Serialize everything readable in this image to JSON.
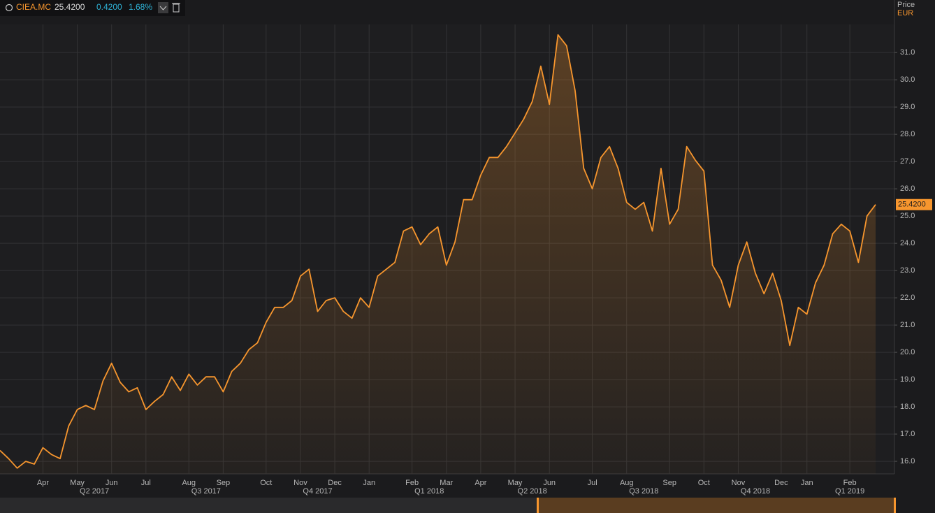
{
  "header": {
    "symbol": "CIEA.MC",
    "price": "25.4200",
    "change": "0.4200",
    "change_pct": "1.68%"
  },
  "chart_data": {
    "type": "area",
    "axis_title": "Price",
    "currency": "EUR",
    "color": "#f7962e",
    "grid": true,
    "categories": [
      null,
      null,
      null,
      null,
      null,
      "Apr",
      null,
      null,
      null,
      "May",
      null,
      null,
      null,
      "Jun",
      null,
      null,
      null,
      "Jul",
      null,
      null,
      null,
      null,
      "Aug",
      null,
      null,
      null,
      "Sep",
      null,
      null,
      null,
      null,
      "Oct",
      null,
      null,
      null,
      "Nov",
      null,
      null,
      null,
      "Dec",
      null,
      null,
      null,
      "Jan",
      null,
      null,
      null,
      null,
      "Feb",
      null,
      null,
      null,
      "Mar",
      null,
      null,
      null,
      "Apr",
      null,
      null,
      null,
      "May",
      null,
      null,
      null,
      "Jun",
      null,
      null,
      null,
      null,
      "Jul",
      null,
      null,
      null,
      "Aug",
      null,
      null,
      null,
      null,
      "Sep",
      null,
      null,
      null,
      "Oct",
      null,
      null,
      null,
      "Nov",
      null,
      null,
      null,
      null,
      "Dec",
      null,
      null,
      "Jan",
      null,
      null,
      null,
      null,
      "Feb",
      null,
      null,
      null
    ],
    "quarters": [
      null,
      null,
      null,
      null,
      null,
      null,
      null,
      null,
      null,
      null,
      null,
      "Q2 2017",
      null,
      null,
      null,
      null,
      null,
      null,
      null,
      null,
      null,
      null,
      null,
      null,
      "Q3 2017",
      null,
      null,
      null,
      null,
      null,
      null,
      null,
      null,
      null,
      null,
      null,
      null,
      "Q4 2017",
      null,
      null,
      null,
      null,
      null,
      null,
      null,
      null,
      null,
      null,
      null,
      null,
      "Q1 2018",
      null,
      null,
      null,
      null,
      null,
      null,
      null,
      null,
      null,
      null,
      null,
      "Q2 2018",
      null,
      null,
      null,
      null,
      null,
      null,
      null,
      null,
      null,
      null,
      null,
      null,
      "Q3 2018",
      null,
      null,
      null,
      null,
      null,
      null,
      null,
      null,
      null,
      null,
      null,
      null,
      "Q4 2018",
      null,
      null,
      null,
      null,
      null,
      null,
      null,
      null,
      null,
      null,
      "Q1 2019",
      null,
      null,
      null
    ],
    "values": [
      16.4,
      16.1,
      15.75,
      16.0,
      15.9,
      16.5,
      16.25,
      16.1,
      17.3,
      17.9,
      18.05,
      17.9,
      18.95,
      19.6,
      18.9,
      18.55,
      18.7,
      17.9,
      18.2,
      18.45,
      19.1,
      18.6,
      19.2,
      18.8,
      19.1,
      19.1,
      18.55,
      19.3,
      19.6,
      20.1,
      20.35,
      21.1,
      21.65,
      21.65,
      21.9,
      22.8,
      23.05,
      21.5,
      21.9,
      22.0,
      21.5,
      21.25,
      22.0,
      21.65,
      22.8,
      23.05,
      23.3,
      24.45,
      24.6,
      23.95,
      24.35,
      24.6,
      23.2,
      24.05,
      25.6,
      25.6,
      26.5,
      27.15,
      27.15,
      27.55,
      28.05,
      28.55,
      29.2,
      30.5,
      29.1,
      31.65,
      31.25,
      29.6,
      26.75,
      26.0,
      27.15,
      27.55,
      26.75,
      25.5,
      25.25,
      25.5,
      24.45,
      26.75,
      24.7,
      25.25,
      27.55,
      27.05,
      26.65,
      23.2,
      22.65,
      21.65,
      23.2,
      24.05,
      22.9,
      22.15,
      22.9,
      21.9,
      20.25,
      21.65,
      21.4,
      22.55,
      23.2,
      24.35,
      24.7,
      24.45,
      23.3,
      25.0,
      25.42
    ],
    "ylim": [
      15.54,
      32.03
    ],
    "yticks": [
      {
        "value": 16,
        "label": "16.0"
      },
      {
        "value": 17,
        "label": "17.0"
      },
      {
        "value": 18,
        "label": "18.0"
      },
      {
        "value": 19,
        "label": "19.0"
      },
      {
        "value": 20,
        "label": "20.0"
      },
      {
        "value": 21,
        "label": "21.0"
      },
      {
        "value": 22,
        "label": "22.0"
      },
      {
        "value": 23,
        "label": "23.0"
      },
      {
        "value": 24,
        "label": "24.0"
      },
      {
        "value": 25,
        "label": "25.0"
      },
      {
        "value": 26,
        "label": "26.0"
      },
      {
        "value": 27,
        "label": "27.0"
      },
      {
        "value": 28,
        "label": "28.0"
      },
      {
        "value": 29,
        "label": "29.0"
      },
      {
        "value": 30,
        "label": "30.0"
      },
      {
        "value": 31,
        "label": "31.0"
      }
    ]
  }
}
